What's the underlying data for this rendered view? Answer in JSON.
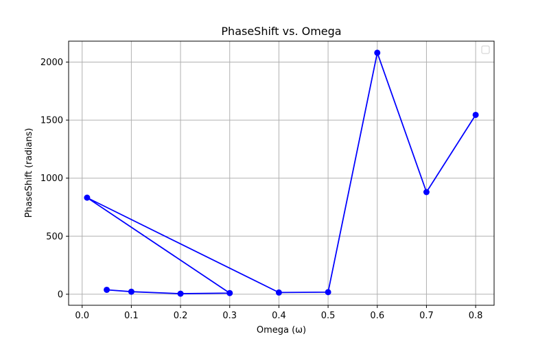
{
  "chart_data": {
    "type": "line",
    "title": "PhaseShift vs. Omega",
    "xlabel": "Omega (ω)",
    "ylabel": "PhaseShift (radians)",
    "xlim": [
      -0.0275,
      0.8375
    ],
    "ylim": [
      -95,
      2180
    ],
    "xticks": [
      0.0,
      0.1,
      0.2,
      0.3,
      0.4,
      0.5,
      0.6,
      0.7,
      0.8
    ],
    "xtick_labels": [
      "0.0",
      "0.1",
      "0.2",
      "0.3",
      "0.4",
      "0.5",
      "0.6",
      "0.7",
      "0.8"
    ],
    "yticks": [
      0,
      500,
      1000,
      1500,
      2000
    ],
    "ytick_labels": [
      "0",
      "500",
      "1000",
      "1500",
      "2000"
    ],
    "grid": true,
    "legend": "top-right",
    "series": [
      {
        "color": "#0000ff",
        "marker": "circle",
        "points": [
          {
            "x": 0.05,
            "y": 38
          },
          {
            "x": 0.1,
            "y": 22
          },
          {
            "x": 0.2,
            "y": 5
          },
          {
            "x": 0.3,
            "y": 10
          },
          {
            "x": 0.01,
            "y": 832
          },
          {
            "x": 0.4,
            "y": 15
          },
          {
            "x": 0.5,
            "y": 18
          },
          {
            "x": 0.6,
            "y": 2080
          },
          {
            "x": 0.7,
            "y": 880
          },
          {
            "x": 0.8,
            "y": 1545
          }
        ]
      }
    ]
  }
}
